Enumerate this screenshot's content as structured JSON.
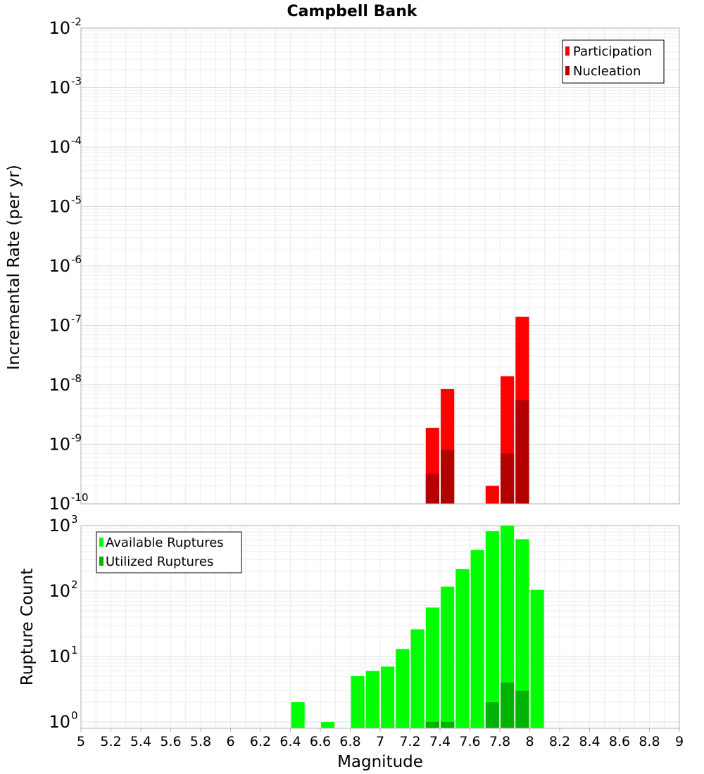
{
  "title": "Campbell Bank",
  "colors": {
    "participation": "#ff0000",
    "nucleation": "#b30000",
    "available": "#00ff00",
    "utilized": "#00b300",
    "grid": "#e6e6e6",
    "frame": "#b0b0b0"
  },
  "xaxis": {
    "label": "Magnitude",
    "range": [
      5,
      9
    ],
    "ticks": [
      "5",
      "5.2",
      "5.4",
      "5.6",
      "5.8",
      "6",
      "6.2",
      "6.4",
      "6.6",
      "6.8",
      "7",
      "7.2",
      "7.4",
      "7.6",
      "7.8",
      "8",
      "8.2",
      "8.4",
      "8.6",
      "8.8",
      "9"
    ]
  },
  "chart_data": [
    {
      "type": "bar",
      "title": "Campbell Bank",
      "xlabel": "Magnitude",
      "ylabel": "Incremental Rate (per yr)",
      "xlim": [
        5,
        9
      ],
      "ylim": [
        1e-10,
        0.01
      ],
      "yscale": "log",
      "grid": true,
      "legend_position": "top-right",
      "y_ticks": [
        {
          "base": "10",
          "exp": "-2"
        },
        {
          "base": "10",
          "exp": "-3"
        },
        {
          "base": "10",
          "exp": "-4"
        },
        {
          "base": "10",
          "exp": "-5"
        },
        {
          "base": "10",
          "exp": "-6"
        },
        {
          "base": "10",
          "exp": "-7"
        },
        {
          "base": "10",
          "exp": "-8"
        },
        {
          "base": "10",
          "exp": "-9"
        },
        {
          "base": "10",
          "exp": "-10"
        }
      ],
      "series": [
        {
          "name": "Participation",
          "color": "#ff0000",
          "x": [
            7.35,
            7.45,
            7.75,
            7.85,
            7.95
          ],
          "values": [
            1.9e-09,
            8.5e-09,
            2e-10,
            1.4e-08,
            1.4e-07
          ]
        },
        {
          "name": "Nucleation",
          "color": "#b30000",
          "x": [
            7.35,
            7.45,
            7.85,
            7.95
          ],
          "values": [
            3.2e-10,
            8e-10,
            7e-10,
            5.5e-09
          ]
        }
      ]
    },
    {
      "type": "bar",
      "xlabel": "Magnitude",
      "ylabel": "Rupture Count",
      "xlim": [
        5,
        9
      ],
      "ylim": [
        0.8,
        1000
      ],
      "yscale": "log",
      "grid": true,
      "legend_position": "top-left",
      "y_ticks": [
        {
          "base": "10",
          "exp": "3"
        },
        {
          "base": "10",
          "exp": "2"
        },
        {
          "base": "10",
          "exp": "1"
        },
        {
          "base": "10",
          "exp": "0"
        }
      ],
      "series": [
        {
          "name": "Available Ruptures",
          "color": "#00ff00",
          "x": [
            6.45,
            6.65,
            6.85,
            6.95,
            7.05,
            7.15,
            7.25,
            7.35,
            7.45,
            7.55,
            7.65,
            7.75,
            7.85,
            7.95,
            8.05
          ],
          "values": [
            2,
            1,
            5,
            6,
            7,
            13,
            26,
            56,
            117,
            216,
            424,
            823,
            1000,
            620,
            105
          ]
        },
        {
          "name": "Utilized Ruptures",
          "color": "#00b300",
          "x": [
            7.35,
            7.45,
            7.75,
            7.85,
            7.95
          ],
          "values": [
            1,
            1,
            2,
            4,
            3
          ]
        }
      ]
    }
  ]
}
